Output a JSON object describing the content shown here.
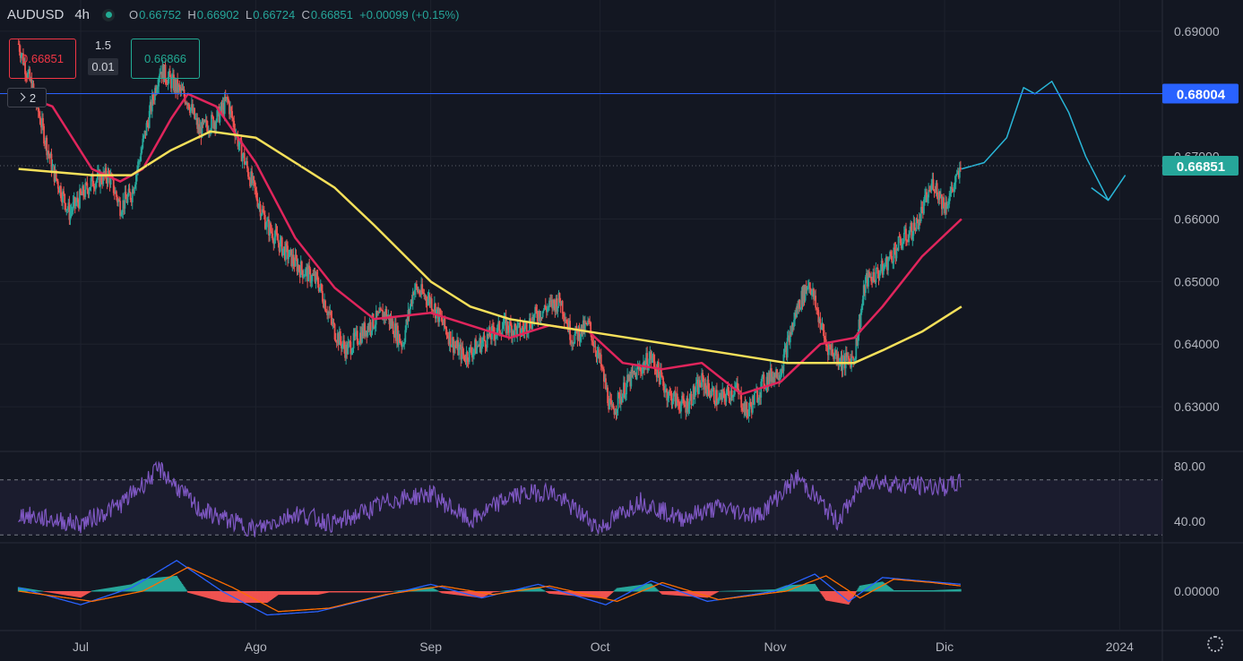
{
  "header": {
    "symbol": "AUDUSD",
    "timeframe": "4h",
    "open_label": "O",
    "open": "0.66752",
    "high_label": "H",
    "high": "0.66902",
    "low_label": "L",
    "low": "0.66724",
    "close_label": "C",
    "close": "0.66851",
    "change": "+0.00099 (+0.15%)"
  },
  "trade": {
    "bid": "0.66851",
    "spread": "1.5",
    "lot": "0.01",
    "ask": "0.66866"
  },
  "legend_toggle": {
    "count": "2"
  },
  "chart_data": {
    "type": "candlestick",
    "symbol": "AUDUSD",
    "interval": "4h",
    "x_ticks": [
      "Jul",
      "Ago",
      "Sep",
      "Oct",
      "Nov",
      "Dic",
      "2024"
    ],
    "y_ticks": [
      0.63,
      0.64,
      0.65,
      0.66,
      0.67,
      0.68,
      0.69
    ],
    "y_tick_labels": [
      "0.63000",
      "0.64000",
      "0.65000",
      "0.66000",
      "0.67000",
      "0.68000",
      "0.69000"
    ],
    "ylim": [
      0.623,
      0.695
    ],
    "current_price": 0.66851,
    "current_price_label": "0.66851",
    "horizontal_line": 0.68004,
    "horizontal_line_label": "0.68004",
    "price_path": [
      [
        "Jun 20",
        0.688
      ],
      [
        "Jun 23",
        0.679
      ],
      [
        "Jun 26",
        0.668
      ],
      [
        "Jun 29",
        0.661
      ],
      [
        "Jul 3",
        0.666
      ],
      [
        "Jul 6",
        0.667
      ],
      [
        "Jul 8",
        0.662
      ],
      [
        "Jul 10",
        0.664
      ],
      [
        "Jul 13",
        0.676
      ],
      [
        "Jul 15",
        0.684
      ],
      [
        "Jul 18",
        0.681
      ],
      [
        "Jul 20",
        0.679
      ],
      [
        "Jul 22",
        0.674
      ],
      [
        "Jul 25",
        0.676
      ],
      [
        "Jul 27",
        0.679
      ],
      [
        "Jul 29",
        0.672
      ],
      [
        "Aug 1",
        0.664
      ],
      [
        "Aug 3",
        0.659
      ],
      [
        "Aug 6",
        0.655
      ],
      [
        "Aug 9",
        0.652
      ],
      [
        "Aug 12",
        0.65
      ],
      [
        "Aug 15",
        0.642
      ],
      [
        "Aug 17",
        0.639
      ],
      [
        "Aug 21",
        0.643
      ],
      [
        "Aug 24",
        0.645
      ],
      [
        "Aug 27",
        0.64
      ],
      [
        "Aug 29",
        0.649
      ],
      [
        "Sep 1",
        0.647
      ],
      [
        "Sep 5",
        0.64
      ],
      [
        "Sep 7",
        0.638
      ],
      [
        "Sep 11",
        0.641
      ],
      [
        "Sep 14",
        0.643
      ],
      [
        "Sep 17",
        0.642
      ],
      [
        "Sep 20",
        0.645
      ],
      [
        "Sep 24",
        0.647
      ],
      [
        "Sep 26",
        0.641
      ],
      [
        "Sep 29",
        0.643
      ],
      [
        "Oct 1",
        0.637
      ],
      [
        "Oct 3",
        0.629
      ],
      [
        "Oct 6",
        0.634
      ],
      [
        "Oct 10",
        0.638
      ],
      [
        "Oct 13",
        0.632
      ],
      [
        "Oct 16",
        0.63
      ],
      [
        "Oct 19",
        0.634
      ],
      [
        "Oct 22",
        0.631
      ],
      [
        "Oct 25",
        0.633
      ],
      [
        "Oct 27",
        0.629
      ],
      [
        "Oct 30",
        0.634
      ],
      [
        "Nov 2",
        0.636
      ],
      [
        "Nov 5",
        0.646
      ],
      [
        "Nov 7",
        0.65
      ],
      [
        "Nov 10",
        0.64
      ],
      [
        "Nov 13",
        0.637
      ],
      [
        "Nov 15",
        0.638
      ],
      [
        "Nov 17",
        0.65
      ],
      [
        "Nov 20",
        0.652
      ],
      [
        "Nov 23",
        0.656
      ],
      [
        "Nov 26",
        0.659
      ],
      [
        "Nov 29",
        0.666
      ],
      [
        "Dec 1",
        0.662
      ],
      [
        "Dec 4",
        0.668
      ]
    ],
    "series": [
      {
        "name": "",
        "color": "#e0255c",
        "style": "moving-average-fast",
        "values": [
          [
            "Jun 20",
            0.68
          ],
          [
            "Jun 26",
            0.678
          ],
          [
            "Jul 3",
            0.668
          ],
          [
            "Jul 8",
            0.666
          ],
          [
            "Jul 12",
            0.668
          ],
          [
            "Jul 17",
            0.676
          ],
          [
            "Jul 20",
            0.68
          ],
          [
            "Jul 25",
            0.678
          ],
          [
            "Aug 1",
            0.669
          ],
          [
            "Aug 8",
            0.657
          ],
          [
            "Aug 15",
            0.649
          ],
          [
            "Aug 22",
            0.644
          ],
          [
            "Sep 1",
            0.645
          ],
          [
            "Sep 8",
            0.643
          ],
          [
            "Sep 15",
            0.641
          ],
          [
            "Sep 22",
            0.643
          ],
          [
            "Sep 29",
            0.642
          ],
          [
            "Oct 5",
            0.637
          ],
          [
            "Oct 12",
            0.636
          ],
          [
            "Oct 19",
            0.637
          ],
          [
            "Oct 26",
            0.632
          ],
          [
            "Nov 2",
            0.634
          ],
          [
            "Nov 9",
            0.64
          ],
          [
            "Nov 15",
            0.641
          ],
          [
            "Nov 20",
            0.646
          ],
          [
            "Nov 27",
            0.654
          ],
          [
            "Dec 4",
            0.66
          ]
        ]
      },
      {
        "name": "",
        "color": "#f5e05a",
        "style": "moving-average-slow",
        "values": [
          [
            "Jun 20",
            0.668
          ],
          [
            "Jul 3",
            0.667
          ],
          [
            "Jul 10",
            0.667
          ],
          [
            "Jul 17",
            0.671
          ],
          [
            "Jul 24",
            0.674
          ],
          [
            "Aug 1",
            0.673
          ],
          [
            "Aug 8",
            0.669
          ],
          [
            "Aug 15",
            0.665
          ],
          [
            "Aug 22",
            0.659
          ],
          [
            "Sep 1",
            0.65
          ],
          [
            "Sep 8",
            0.646
          ],
          [
            "Sep 15",
            0.644
          ],
          [
            "Sep 22",
            0.643
          ],
          [
            "Sep 29",
            0.642
          ],
          [
            "Oct 6",
            0.641
          ],
          [
            "Oct 13",
            0.64
          ],
          [
            "Oct 20",
            0.639
          ],
          [
            "Oct 27",
            0.638
          ],
          [
            "Nov 3",
            0.637
          ],
          [
            "Nov 10",
            0.637
          ],
          [
            "Nov 15",
            0.637
          ],
          [
            "Nov 20",
            0.639
          ],
          [
            "Nov 27",
            0.642
          ],
          [
            "Dec 4",
            0.646
          ]
        ]
      },
      {
        "name": "",
        "color": "#29b6d8",
        "style": "projected-path",
        "values": [
          [
            "Dec 4",
            0.668
          ],
          [
            "Dec 8",
            0.669
          ],
          [
            "Dec 12",
            0.673
          ],
          [
            "Dec 15",
            0.681
          ],
          [
            "Dec 17",
            0.68
          ],
          [
            "Dec 20",
            0.682
          ],
          [
            "Dec 23",
            0.677
          ],
          [
            "Dec 26",
            0.67
          ],
          [
            "Dec 30",
            0.663
          ],
          [
            "Jan 2",
            0.667
          ]
        ]
      },
      {
        "name": "",
        "color": "#29b6d8",
        "style": "projected-path-branch",
        "values": [
          [
            "Dec 27",
            0.665
          ],
          [
            "Dec 30",
            0.663
          ]
        ]
      }
    ],
    "rsi": {
      "ylim": [
        25,
        90
      ],
      "upper": 70,
      "lower": 30,
      "tick_labels": [
        "80.00",
        "40.00"
      ],
      "ticks": [
        80,
        40
      ],
      "color": "#7e57c2",
      "values": [
        [
          "Jun 20",
          45
        ],
        [
          "Jul 1",
          38
        ],
        [
          "Jul 8",
          52
        ],
        [
          "Jul 15",
          78
        ],
        [
          "Jul 22",
          48
        ],
        [
          "Aug 1",
          34
        ],
        [
          "Aug 8",
          46
        ],
        [
          "Aug 15",
          38
        ],
        [
          "Aug 25",
          55
        ],
        [
          "Sep 1",
          60
        ],
        [
          "Sep 8",
          40
        ],
        [
          "Sep 15",
          58
        ],
        [
          "Sep 22",
          62
        ],
        [
          "Oct 1",
          35
        ],
        [
          "Oct 8",
          55
        ],
        [
          "Oct 15",
          42
        ],
        [
          "Oct 22",
          50
        ],
        [
          "Oct 29",
          44
        ],
        [
          "Nov 5",
          72
        ],
        [
          "Nov 12",
          40
        ],
        [
          "Nov 17",
          70
        ],
        [
          "Nov 24",
          66
        ],
        [
          "Dec 1",
          65
        ],
        [
          "Dec 4",
          68
        ]
      ]
    },
    "macd": {
      "tick_labels": [
        "0.00000"
      ],
      "macd_color": "#2962ff",
      "signal_color": "#ff6d00",
      "hist_up": "#26a69a",
      "hist_down": "#ef5350",
      "macd_values": [
        [
          "Jun 20",
          0.1
        ],
        [
          "Jul 1",
          -0.4
        ],
        [
          "Jul 10",
          0.1
        ],
        [
          "Jul 18",
          0.9
        ],
        [
          "Jul 26",
          0.0
        ],
        [
          "Aug 3",
          -0.7
        ],
        [
          "Aug 12",
          -0.6
        ],
        [
          "Aug 22",
          -0.2
        ],
        [
          "Sep 1",
          0.2
        ],
        [
          "Sep 10",
          -0.2
        ],
        [
          "Sep 20",
          0.2
        ],
        [
          "Oct 2",
          -0.4
        ],
        [
          "Oct 10",
          0.3
        ],
        [
          "Oct 20",
          -0.3
        ],
        [
          "Nov 1",
          0.0
        ],
        [
          "Nov 8",
          0.5
        ],
        [
          "Nov 14",
          -0.3
        ],
        [
          "Nov 20",
          0.4
        ],
        [
          "Nov 27",
          0.3
        ],
        [
          "Dec 4",
          0.2
        ]
      ],
      "signal_values": [
        [
          "Jun 20",
          0.0
        ],
        [
          "Jul 3",
          -0.3
        ],
        [
          "Jul 12",
          0.0
        ],
        [
          "Jul 20",
          0.7
        ],
        [
          "Jul 28",
          0.1
        ],
        [
          "Aug 5",
          -0.6
        ],
        [
          "Aug 14",
          -0.5
        ],
        [
          "Aug 24",
          -0.1
        ],
        [
          "Sep 3",
          0.15
        ],
        [
          "Sep 12",
          -0.1
        ],
        [
          "Sep 22",
          0.15
        ],
        [
          "Oct 4",
          -0.3
        ],
        [
          "Oct 12",
          0.25
        ],
        [
          "Oct 22",
          -0.25
        ],
        [
          "Nov 3",
          0.0
        ],
        [
          "Nov 10",
          0.45
        ],
        [
          "Nov 16",
          -0.2
        ],
        [
          "Nov 22",
          0.35
        ],
        [
          "Nov 29",
          0.25
        ],
        [
          "Dec 4",
          0.15
        ]
      ]
    },
    "colors": {
      "up": "#26a69a",
      "down": "#ef5350",
      "background": "#131722",
      "grid": "#1e222d",
      "hline": "#2962ff",
      "price_tag": "#26a69a",
      "hline_tag": "#2962ff"
    }
  }
}
